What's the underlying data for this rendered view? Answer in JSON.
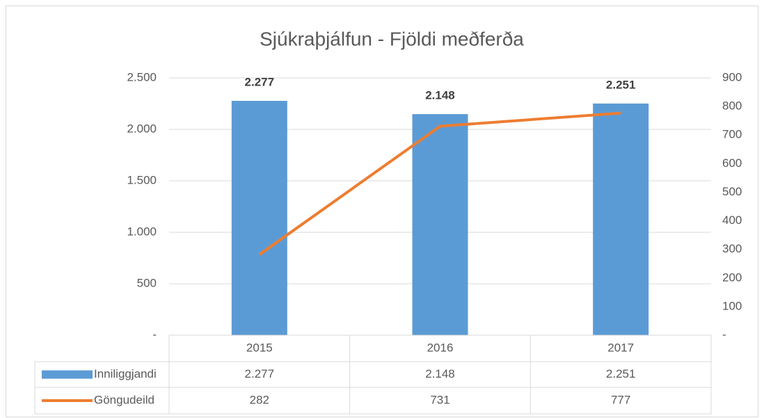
{
  "chart_data": {
    "type": "bar_line",
    "title": "Sjúkraþjálfun - Fjöldi meðferða",
    "categories": [
      "2015",
      "2016",
      "2017"
    ],
    "series": [
      {
        "name": "Inniliggjandi",
        "type": "bar",
        "color": "#5b9bd5",
        "values": [
          2277,
          2148,
          2251
        ],
        "value_labels": [
          "2.277",
          "2.148",
          "2.251"
        ]
      },
      {
        "name": "Göngudeild",
        "type": "line",
        "axis": "y2",
        "color": "#ed7d31",
        "values": [
          282,
          731,
          777
        ]
      }
    ],
    "ylim": [
      0,
      2500
    ],
    "yticks": [
      {
        "value": 0,
        "label": "-"
      },
      500,
      {
        "value": 1000,
        "label": "1.000"
      },
      {
        "value": 1500,
        "label": "1.500"
      },
      {
        "value": 2000,
        "label": "2.000"
      },
      {
        "value": 2500,
        "label": "2.500"
      }
    ],
    "y2lim": [
      0,
      900
    ],
    "y2ticks": [
      {
        "value": 0,
        "label": "-"
      },
      100,
      200,
      300,
      400,
      500,
      600,
      700,
      800,
      900
    ],
    "grid": true,
    "data_table": true
  }
}
